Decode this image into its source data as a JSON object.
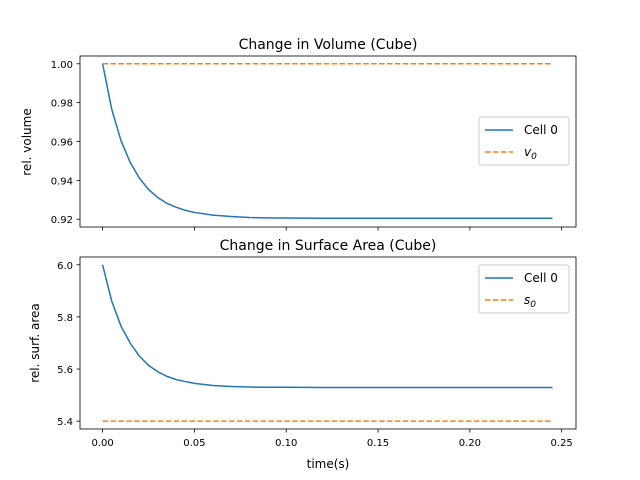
{
  "chart_data": [
    {
      "type": "line",
      "title": "Change in Volume (Cube)",
      "xlabel": "",
      "ylabel": "rel. volume",
      "xlim": [
        -0.0123,
        0.2578
      ],
      "ylim": [
        0.916,
        1.004
      ],
      "xticks": [
        0.0,
        0.05,
        0.1,
        0.15,
        0.2,
        0.25
      ],
      "xtick_labels": [
        "",
        "",
        "",
        "",
        "",
        ""
      ],
      "yticks": [
        0.92,
        0.94,
        0.96,
        0.98,
        1.0
      ],
      "ytick_labels": [
        "0.92",
        "0.94",
        "0.96",
        "0.98",
        "1.00"
      ],
      "legend": "center-right",
      "grid": false,
      "x": [
        0.0,
        0.005,
        0.01,
        0.015,
        0.02,
        0.025,
        0.03,
        0.035,
        0.04,
        0.045,
        0.05,
        0.06,
        0.07,
        0.08,
        0.09,
        0.1,
        0.12,
        0.15,
        0.2,
        0.245
      ],
      "series": [
        {
          "name": "Cell 0",
          "color": "#1f77b4",
          "style": "solid",
          "values": [
            1.0,
            0.9765,
            0.9605,
            0.9493,
            0.9412,
            0.9353,
            0.9312,
            0.9282,
            0.9262,
            0.9246,
            0.9235,
            0.9221,
            0.9214,
            0.9209,
            0.9207,
            0.9206,
            0.9205,
            0.9205,
            0.9205,
            0.9205
          ]
        },
        {
          "name": "v_0",
          "label_html": "v<tspan font-size=\"9\" dy=\"3\">0</tspan>",
          "color": "#ff7f0e",
          "style": "dashed",
          "values": [
            1.0,
            1.0,
            1.0,
            1.0,
            1.0,
            1.0,
            1.0,
            1.0,
            1.0,
            1.0,
            1.0,
            1.0,
            1.0,
            1.0,
            1.0,
            1.0,
            1.0,
            1.0,
            1.0,
            1.0
          ]
        }
      ]
    },
    {
      "type": "line",
      "title": "Change in Surface Area (Cube)",
      "xlabel": "time(s)",
      "ylabel": "rel. surf. area",
      "xlim": [
        -0.0123,
        0.2578
      ],
      "ylim": [
        5.37,
        6.03
      ],
      "xticks": [
        0.0,
        0.05,
        0.1,
        0.15,
        0.2,
        0.25
      ],
      "xtick_labels": [
        "0.00",
        "0.05",
        "0.10",
        "0.15",
        "0.20",
        "0.25"
      ],
      "yticks": [
        5.4,
        5.6,
        5.8,
        6.0
      ],
      "ytick_labels": [
        "5.4",
        "5.6",
        "5.8",
        "6.0"
      ],
      "legend": "upper-right",
      "grid": false,
      "x": [
        0.0,
        0.005,
        0.01,
        0.015,
        0.02,
        0.025,
        0.03,
        0.035,
        0.04,
        0.045,
        0.05,
        0.06,
        0.07,
        0.08,
        0.09,
        0.1,
        0.12,
        0.15,
        0.2,
        0.245
      ],
      "series": [
        {
          "name": "Cell 0",
          "color": "#1f77b4",
          "style": "solid",
          "values": [
            6.0,
            5.86,
            5.765,
            5.7,
            5.65,
            5.614,
            5.59,
            5.572,
            5.56,
            5.552,
            5.545,
            5.537,
            5.533,
            5.531,
            5.53,
            5.53,
            5.529,
            5.529,
            5.529,
            5.529
          ]
        },
        {
          "name": "s_0",
          "label_html": "s<tspan font-size=\"9\" dy=\"3\">0</tspan>",
          "color": "#ff7f0e",
          "style": "dashed",
          "values": [
            5.4,
            5.4,
            5.4,
            5.4,
            5.4,
            5.4,
            5.4,
            5.4,
            5.4,
            5.4,
            5.4,
            5.4,
            5.4,
            5.4,
            5.4,
            5.4,
            5.4,
            5.4,
            5.4,
            5.4
          ]
        }
      ]
    }
  ]
}
